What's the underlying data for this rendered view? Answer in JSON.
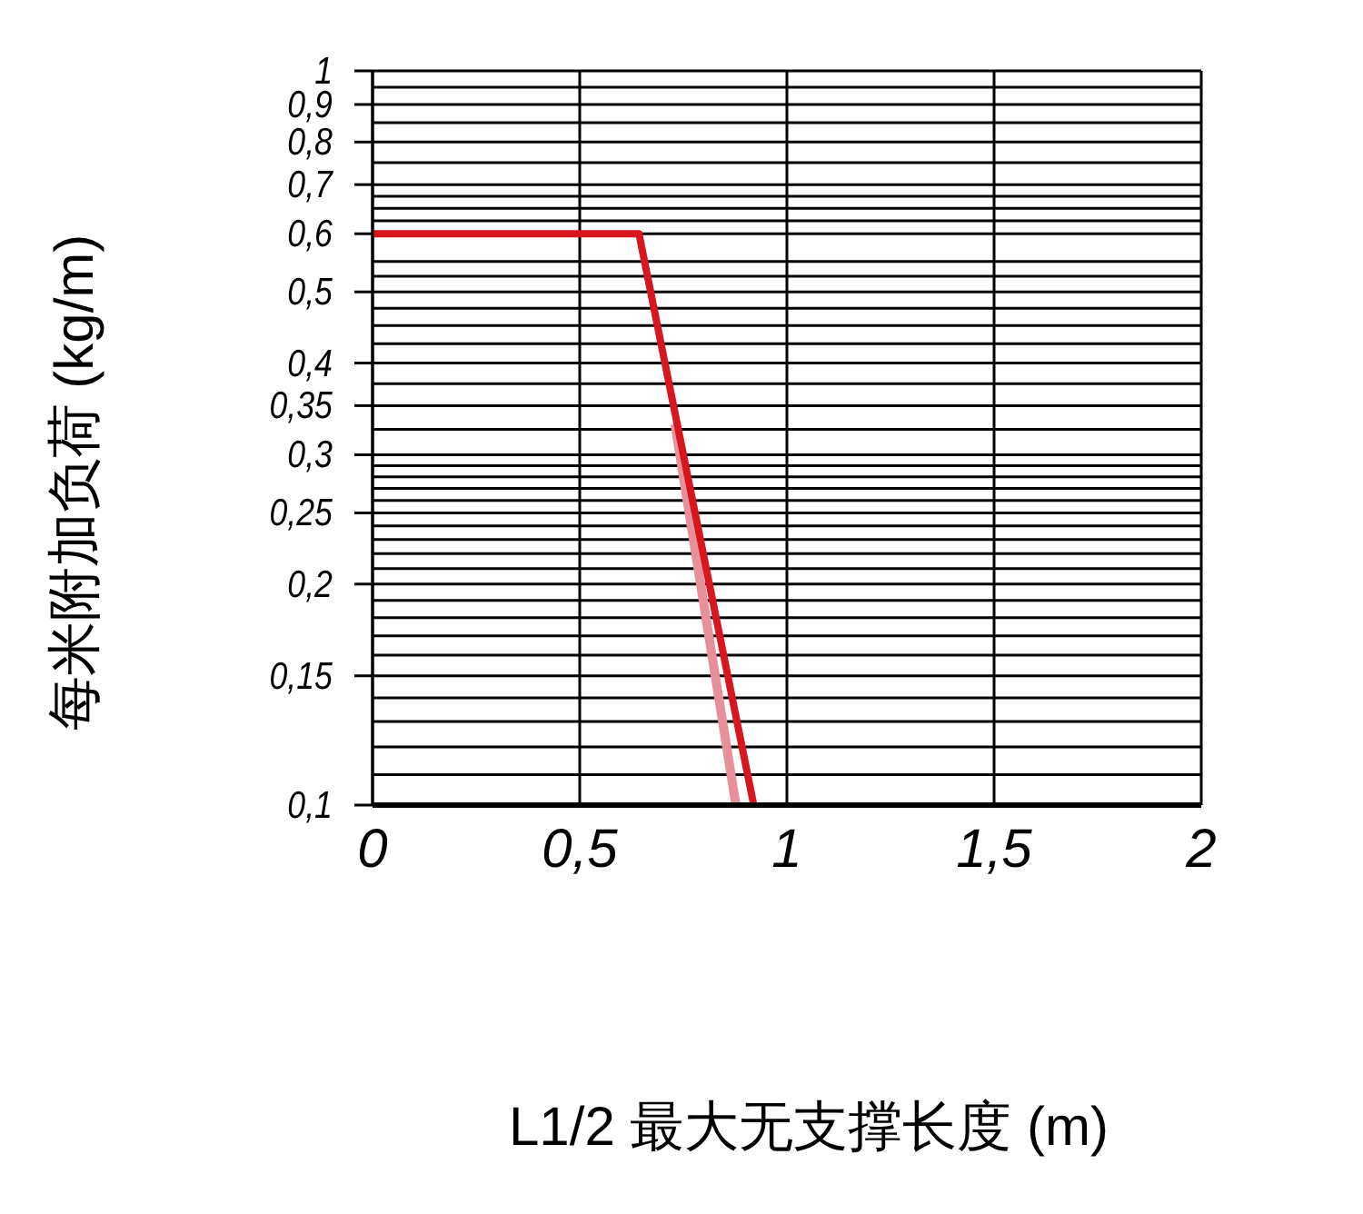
{
  "chart_data": {
    "type": "line",
    "xlabel": "L1/2 最大无支撑长度 (m)",
    "ylabel": "每米附加负荷 (kg/m)",
    "log": "y",
    "grid": true,
    "legend": false,
    "marker": "none",
    "line_style": "solid",
    "xlim": [
      0,
      2
    ],
    "ylim": [
      0.1,
      1
    ],
    "xticks": [
      0,
      {
        "value": 0.5,
        "label": "0,5"
      },
      1,
      {
        "value": 1.5,
        "label": "1,5"
      },
      2
    ],
    "yticks": [
      {
        "value": 0.1,
        "label": "0,1"
      },
      {
        "value": 0.11,
        "label": null
      },
      {
        "value": 0.12,
        "label": null
      },
      {
        "value": 0.13,
        "label": null
      },
      {
        "value": 0.14,
        "label": null
      },
      {
        "value": 0.15,
        "label": "0,15"
      },
      {
        "value": 0.16,
        "label": null
      },
      {
        "value": 0.17,
        "label": null
      },
      {
        "value": 0.18,
        "label": null
      },
      {
        "value": 0.19,
        "label": null
      },
      {
        "value": 0.2,
        "label": "0,2"
      },
      {
        "value": 0.21,
        "label": null
      },
      {
        "value": 0.22,
        "label": null
      },
      {
        "value": 0.23,
        "label": null
      },
      {
        "value": 0.24,
        "label": null
      },
      {
        "value": 0.25,
        "label": "0,25"
      },
      {
        "value": 0.26,
        "label": null
      },
      {
        "value": 0.27,
        "label": null
      },
      {
        "value": 0.28,
        "label": null
      },
      {
        "value": 0.29,
        "label": null
      },
      {
        "value": 0.3,
        "label": "0,3"
      },
      {
        "value": 0.325,
        "label": null
      },
      {
        "value": 0.35,
        "label": "0,35"
      },
      {
        "value": 0.375,
        "label": null
      },
      {
        "value": 0.4,
        "label": "0,4"
      },
      {
        "value": 0.425,
        "label": null
      },
      {
        "value": 0.45,
        "label": null
      },
      {
        "value": 0.475,
        "label": null
      },
      {
        "value": 0.5,
        "label": "0,5"
      },
      {
        "value": 0.525,
        "label": null
      },
      {
        "value": 0.55,
        "label": null
      },
      {
        "value": 0.6,
        "label": "0,6"
      },
      {
        "value": 0.625,
        "label": null
      },
      {
        "value": 0.65,
        "label": null
      },
      {
        "value": 0.675,
        "label": null
      },
      {
        "value": 0.7,
        "label": "0,7"
      },
      {
        "value": 0.75,
        "label": null
      },
      {
        "value": 0.8,
        "label": "0,8"
      },
      {
        "value": 0.85,
        "label": null
      },
      {
        "value": 0.9,
        "label": "0,9"
      },
      {
        "value": 0.95,
        "label": null
      },
      {
        "value": 1,
        "label": "1"
      }
    ],
    "series": [
      {
        "type": "line",
        "color": "#e8909a",
        "x": [
          0.73,
          0.877
        ],
        "values": [
          0.33,
          0.1
        ]
      },
      {
        "type": "line",
        "color": "#d7161e",
        "x": [
          0,
          0.643,
          0.92
        ],
        "values": [
          0.6,
          0.6,
          0.1
        ]
      }
    ]
  }
}
